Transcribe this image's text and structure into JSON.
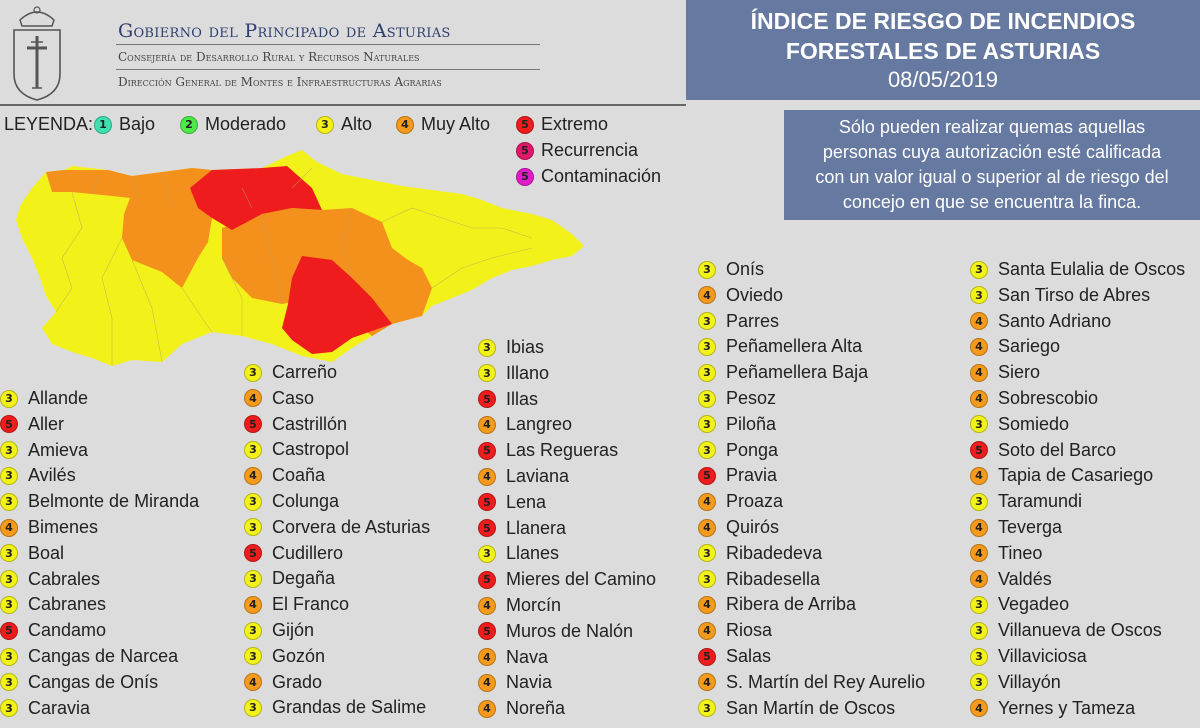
{
  "header": {
    "gov_title": "Gobierno del Principado de Asturias",
    "gov_sub1": "Consejería de Desarrollo Rural y Recursos Naturales",
    "gov_sub2": "Dirección General de Montes e Infraestructuras Agrarias"
  },
  "title": {
    "line1": "ÍNDICE DE RIESGO DE INCENDIOS",
    "line2": "FORESTALES DE ASTURIAS",
    "date": "08/05/2019"
  },
  "notice": {
    "lines": [
      "Sólo pueden realizar quemas aquellas",
      "personas cuya autorización esté calificada",
      "con un valor igual o superior al de riesgo del",
      "concejo en que se encuentra la finca."
    ]
  },
  "legend": {
    "label": "LEYENDA:",
    "items": [
      {
        "num": "1",
        "label": "Bajo",
        "color": "#3fe0b0"
      },
      {
        "num": "2",
        "label": "Moderado",
        "color": "#4ee84a"
      },
      {
        "num": "3",
        "label": "Alto",
        "color": "#f2f21a"
      },
      {
        "num": "4",
        "label": "Muy Alto",
        "color": "#f49a1c"
      },
      {
        "num": "5",
        "label": "Extremo",
        "color": "#ee1c1c"
      },
      {
        "num": "5",
        "label": "Recurrencia",
        "color": "#e0186a"
      },
      {
        "num": "5",
        "label": "Contaminación",
        "color": "#e01cc8"
      }
    ]
  },
  "map_colors": {
    "alto": "#f2f21a",
    "muy_alto": "#f4901c",
    "extremo": "#ee1c1c"
  },
  "municipalities": [
    [
      {
        "n": "3",
        "name": "Allande"
      },
      {
        "n": "5",
        "name": "Aller"
      },
      {
        "n": "3",
        "name": "Amieva"
      },
      {
        "n": "3",
        "name": "Avilés"
      },
      {
        "n": "3",
        "name": "Belmonte de Miranda"
      },
      {
        "n": "4",
        "name": "Bimenes"
      },
      {
        "n": "3",
        "name": "Boal"
      },
      {
        "n": "3",
        "name": "Cabrales"
      },
      {
        "n": "3",
        "name": "Cabranes"
      },
      {
        "n": "5",
        "name": "Candamo"
      },
      {
        "n": "3",
        "name": "Cangas de Narcea"
      },
      {
        "n": "3",
        "name": "Cangas de Onís"
      },
      {
        "n": "3",
        "name": "Caravia"
      }
    ],
    [
      {
        "n": "3",
        "name": "Carreño"
      },
      {
        "n": "4",
        "name": "Caso"
      },
      {
        "n": "5",
        "name": "Castrillón"
      },
      {
        "n": "3",
        "name": "Castropol"
      },
      {
        "n": "4",
        "name": "Coaña"
      },
      {
        "n": "3",
        "name": "Colunga"
      },
      {
        "n": "3",
        "name": "Corvera de Asturias"
      },
      {
        "n": "5",
        "name": "Cudillero"
      },
      {
        "n": "3",
        "name": "Degaña"
      },
      {
        "n": "4",
        "name": "El Franco"
      },
      {
        "n": "3",
        "name": "Gijón"
      },
      {
        "n": "3",
        "name": "Gozón"
      },
      {
        "n": "4",
        "name": "Grado"
      },
      {
        "n": "3",
        "name": "Grandas de Salime"
      }
    ],
    [
      {
        "n": "3",
        "name": "Ibias"
      },
      {
        "n": "3",
        "name": "Illano"
      },
      {
        "n": "5",
        "name": "Illas"
      },
      {
        "n": "4",
        "name": "Langreo"
      },
      {
        "n": "5",
        "name": "Las Regueras"
      },
      {
        "n": "4",
        "name": "Laviana"
      },
      {
        "n": "5",
        "name": "Lena"
      },
      {
        "n": "5",
        "name": "Llanera"
      },
      {
        "n": "3",
        "name": "Llanes"
      },
      {
        "n": "5",
        "name": "Mieres del Camino"
      },
      {
        "n": "4",
        "name": "Morcín"
      },
      {
        "n": "5",
        "name": "Muros de Nalón"
      },
      {
        "n": "4",
        "name": "Nava"
      },
      {
        "n": "4",
        "name": "Navia"
      },
      {
        "n": "4",
        "name": "Noreña"
      }
    ],
    [
      {
        "n": "3",
        "name": "Onís"
      },
      {
        "n": "4",
        "name": "Oviedo"
      },
      {
        "n": "3",
        "name": "Parres"
      },
      {
        "n": "3",
        "name": "Peñamellera Alta"
      },
      {
        "n": "3",
        "name": "Peñamellera Baja"
      },
      {
        "n": "3",
        "name": "Pesoz"
      },
      {
        "n": "3",
        "name": "Piloña"
      },
      {
        "n": "3",
        "name": "Ponga"
      },
      {
        "n": "5",
        "name": "Pravia"
      },
      {
        "n": "4",
        "name": "Proaza"
      },
      {
        "n": "4",
        "name": "Quirós"
      },
      {
        "n": "3",
        "name": "Ribadedeva"
      },
      {
        "n": "3",
        "name": "Ribadesella"
      },
      {
        "n": "4",
        "name": "Ribera de Arriba"
      },
      {
        "n": "4",
        "name": "Riosa"
      },
      {
        "n": "5",
        "name": "Salas"
      },
      {
        "n": "4",
        "name": "S. Martín del Rey Aurelio"
      },
      {
        "n": "3",
        "name": "San Martín de Oscos"
      }
    ],
    [
      {
        "n": "3",
        "name": "Santa Eulalia de Oscos"
      },
      {
        "n": "3",
        "name": "San Tirso de Abres"
      },
      {
        "n": "4",
        "name": "Santo Adriano"
      },
      {
        "n": "4",
        "name": "Sariego"
      },
      {
        "n": "4",
        "name": "Siero"
      },
      {
        "n": "4",
        "name": "Sobrescobio"
      },
      {
        "n": "3",
        "name": "Somiedo"
      },
      {
        "n": "5",
        "name": "Soto del Barco"
      },
      {
        "n": "4",
        "name": "Tapia de Casariego"
      },
      {
        "n": "3",
        "name": "Taramundi"
      },
      {
        "n": "4",
        "name": "Teverga"
      },
      {
        "n": "4",
        "name": "Tineo"
      },
      {
        "n": "4",
        "name": "Valdés"
      },
      {
        "n": "3",
        "name": "Vegadeo"
      },
      {
        "n": "3",
        "name": "Villanueva de Oscos"
      },
      {
        "n": "3",
        "name": "Villaviciosa"
      },
      {
        "n": "3",
        "name": "Villayón"
      },
      {
        "n": "4",
        "name": "Yernes y Tameza"
      }
    ]
  ]
}
